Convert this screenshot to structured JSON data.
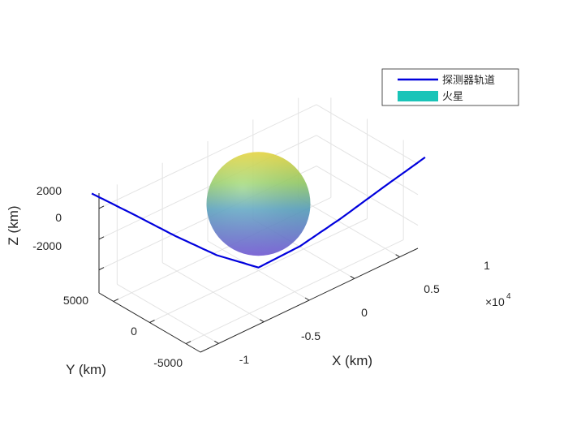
{
  "chart_data": {
    "type": "line",
    "view": "3d",
    "xlabel": "X (km)",
    "ylabel": "Y (km)",
    "zlabel": "Z (km)",
    "x_ticks": [
      "-1",
      "-0.5",
      "0",
      "0.5",
      "1"
    ],
    "x_tick_values": [
      -10000,
      -5000,
      0,
      5000,
      10000
    ],
    "x_exponent_label": "×10",
    "x_exponent_power": "4",
    "y_ticks": [
      "-5000",
      "0",
      "5000"
    ],
    "y_tick_values": [
      -5000,
      0,
      5000
    ],
    "z_ticks": [
      "-2000",
      "0",
      "2000"
    ],
    "z_tick_values": [
      -2000,
      0,
      2000
    ],
    "xlim": [
      -12000,
      12000
    ],
    "ylim": [
      -7000,
      7000
    ],
    "zlim": [
      -3500,
      3000
    ],
    "grid": true,
    "legend_position": "top-right",
    "series": [
      {
        "name": "探测器轨道",
        "kind": "line",
        "color": "#0000dd",
        "x": [
          -12000,
          -9000,
          -6000,
          -3000,
          0,
          3000,
          6000,
          9000,
          12000
        ],
        "y": [
          8000,
          6000,
          4000,
          2000,
          0,
          -2000,
          -4000,
          -6000,
          -8000
        ],
        "z": [
          2700,
          1050,
          -650,
          -2200,
          -3300,
          -2200,
          -650,
          1050,
          2700
        ]
      },
      {
        "name": "火星",
        "kind": "surface",
        "color": "#19c4b8",
        "center": [
          0,
          0,
          0
        ],
        "radius_km": 3390
      }
    ]
  }
}
